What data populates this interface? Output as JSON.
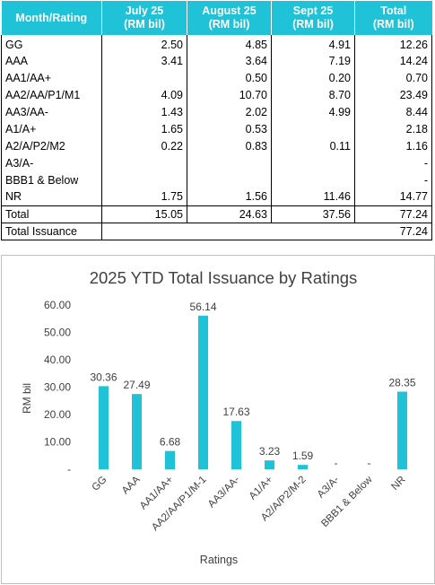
{
  "table": {
    "headers": [
      {
        "line1": "Month/Rating",
        "line2": ""
      },
      {
        "line1": "July 25",
        "line2": "(RM bil)"
      },
      {
        "line1": "August 25",
        "line2": "(RM bil)"
      },
      {
        "line1": "Sept 25",
        "line2": "(RM bil)"
      },
      {
        "line1": "Total",
        "line2": "(RM bil)"
      }
    ],
    "rows": [
      [
        "GG",
        "2.50",
        "4.85",
        "4.91",
        "12.26"
      ],
      [
        "AAA",
        "3.41",
        "3.64",
        "7.19",
        "14.24"
      ],
      [
        "AA1/AA+",
        "",
        "0.50",
        "0.20",
        "0.70"
      ],
      [
        "AA2/AA/P1/M1",
        "4.09",
        "10.70",
        "8.70",
        "23.49"
      ],
      [
        "AA3/AA-",
        "1.43",
        "2.02",
        "4.99",
        "8.44"
      ],
      [
        "A1/A+",
        "1.65",
        "0.53",
        "",
        "2.18"
      ],
      [
        "A2/A/P2/M2",
        "0.22",
        "0.83",
        "0.11",
        "1.16"
      ],
      [
        "A3/A-",
        "",
        "",
        "",
        "-"
      ],
      [
        "BBB1 & Below",
        "",
        "",
        "",
        "-"
      ],
      [
        "NR",
        "1.75",
        "1.56",
        "11.46",
        "14.77"
      ]
    ],
    "total_row": [
      "Total",
      "15.05",
      "24.63",
      "37.56",
      "77.24"
    ],
    "issuance_row": {
      "label": "Total Issuance",
      "value": "77.24"
    }
  },
  "chart_data": {
    "type": "bar",
    "title": "2025 YTD Total Issuance by Ratings",
    "xlabel": "Ratings",
    "ylabel": "RM bil",
    "categories": [
      "GG",
      "AAA",
      "AA1/AA+",
      "AA2/AA/P1/M-1",
      "AA3/AA-",
      "A1/A+",
      "A2/A/P2/M-2",
      "A3/A-",
      "BBB1 & Below",
      "NR"
    ],
    "values": [
      30.36,
      27.49,
      6.68,
      56.14,
      17.63,
      3.23,
      1.59,
      null,
      null,
      28.35
    ],
    "data_labels": [
      "30.36",
      "27.49",
      "6.68",
      "56.14",
      "17.63",
      "3.23",
      "1.59",
      "-",
      "-",
      "28.35"
    ],
    "y_ticks": [
      0,
      10,
      20,
      30,
      40,
      50,
      60
    ],
    "y_tick_labels": [
      "-",
      "10.00",
      "20.00",
      "30.00",
      "40.00",
      "50.00",
      "60.00"
    ],
    "ylim": [
      0,
      60
    ],
    "grid": false,
    "legend": "none",
    "bar_color": "#1fc2d6"
  }
}
